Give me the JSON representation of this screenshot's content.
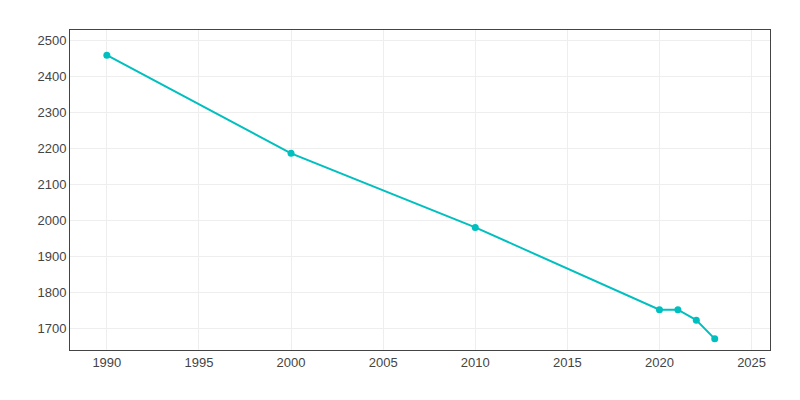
{
  "chart_data": {
    "type": "line",
    "x": [
      1990,
      2000,
      2010,
      2020,
      2021,
      2022,
      2023
    ],
    "values": [
      2460,
      2187,
      1981,
      1752,
      1752,
      1723,
      1671
    ],
    "color": "#00BFBF",
    "marker": "circle",
    "xlim": [
      1988,
      2026
    ],
    "ylim": [
      1640,
      2530
    ],
    "xticks": [
      1990,
      1995,
      2000,
      2005,
      2010,
      2015,
      2020,
      2025
    ],
    "yticks": [
      1700,
      1800,
      1900,
      2000,
      2100,
      2200,
      2300,
      2400,
      2500
    ],
    "grid": true
  }
}
